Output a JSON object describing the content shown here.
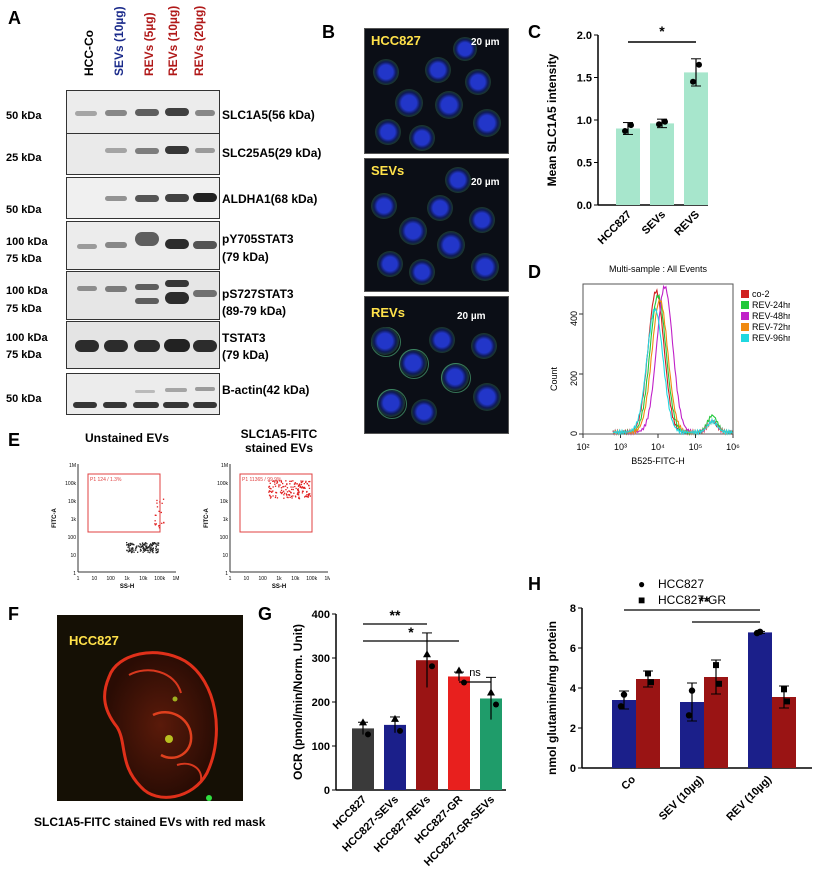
{
  "panels": {
    "A": "A",
    "B": "B",
    "C": "C",
    "D": "D",
    "E": "E",
    "F": "F",
    "G": "G",
    "H": "H"
  },
  "panelA": {
    "lanes": [
      {
        "label": "HCC-Co",
        "color": "#000000"
      },
      {
        "label": "SEVs (10µg)",
        "color": "#1a2a8a"
      },
      {
        "label": "REVs (5µg)",
        "color": "#b01818"
      },
      {
        "label": "REVs (10µg)",
        "color": "#b01818"
      },
      {
        "label": "REVs (20µg)",
        "color": "#b01818"
      }
    ],
    "blots": [
      {
        "protein": "SLC1A5(56 kDa)",
        "kda": [
          "50 kDa"
        ]
      },
      {
        "protein": "SLC25A5(29 kDa)",
        "kda": [
          "25 kDa"
        ]
      },
      {
        "protein": "ALDHA1(68 kDa)",
        "kda": [
          "50 kDa"
        ]
      },
      {
        "protein": "pY705STAT3",
        "protein2": "(79 kDa)",
        "kda": [
          "100 kDa",
          "75 kDa"
        ]
      },
      {
        "protein": "pS727STAT3",
        "protein2": "(89-79 kDa)",
        "kda": [
          "100 kDa",
          "75 kDa"
        ]
      },
      {
        "protein": "TSTAT3",
        "protein2": "(79 kDa)",
        "kda": [
          "100 kDa",
          "75 kDa"
        ]
      },
      {
        "protein": "B-actin(42 kDa)",
        "kda": [
          "50 kDa"
        ]
      }
    ]
  },
  "panelB": {
    "images": [
      "HCC827",
      "SEVs",
      "REVs"
    ],
    "scale": "20 µm"
  },
  "colors": {
    "teal": "#a7e6cc",
    "navy": "#1b1f8a",
    "darkred": "#9a1414",
    "red": "#e8201e",
    "green": "#1f9c6a",
    "dark": "#3a3a3a"
  },
  "chart_data": [
    {
      "id": "C",
      "type": "bar",
      "categories": [
        "HCC827",
        "SEVs",
        "REVS"
      ],
      "values": [
        0.9,
        0.96,
        1.56
      ],
      "errors": [
        0.07,
        0.05,
        0.16
      ],
      "points": [
        [
          0.87,
          0.94
        ],
        [
          0.95,
          0.98
        ],
        [
          1.45,
          1.65
        ]
      ],
      "ylabel": "Mean SLC1A5 intensity",
      "xlabel": "",
      "ylim": [
        0,
        2.0
      ],
      "yticks": [
        "0.0",
        "0.5",
        "1.0",
        "1.5",
        "2.0"
      ],
      "sig": "*"
    },
    {
      "id": "D",
      "type": "line",
      "title": "Multi-sample : All Events",
      "xlabel": "B525-FITC-H",
      "ylabel": "Count",
      "yticks": [
        "0",
        "200",
        "400"
      ],
      "xticks": [
        "10²",
        "10³",
        "10⁴",
        "10⁵",
        "10⁶"
      ],
      "series": [
        {
          "name": "co-2",
          "color": "#d02020",
          "peak": 3.95,
          "height": 470
        },
        {
          "name": "REV-24hr",
          "color": "#22c83a",
          "peak": 4.0,
          "height": 455
        },
        {
          "name": "REV-48hr",
          "color": "#c020c8",
          "peak": 4.18,
          "height": 485
        },
        {
          "name": "REV-72hr",
          "color": "#f08a10",
          "peak": 4.05,
          "height": 440
        },
        {
          "name": "REV-96hr",
          "color": "#20d8e0",
          "peak": 3.92,
          "height": 410
        }
      ]
    },
    {
      "id": "G",
      "type": "bar",
      "categories": [
        "HCC827",
        "HCC827-SEVs",
        "HCC827-REVs",
        "HCC827-GR",
        "HCC827-GR-SEVs"
      ],
      "values": [
        140,
        148,
        295,
        258,
        208
      ],
      "errors": [
        14,
        18,
        62,
        10,
        48
      ],
      "ylabel": "OCR (pmol/min/Norm. Unit)",
      "xlabel": "",
      "ylim": [
        0,
        400
      ],
      "yticks": [
        "0",
        "100",
        "200",
        "300",
        "400"
      ],
      "sig": [
        "**",
        "*",
        "ns"
      ]
    },
    {
      "id": "H",
      "type": "bar",
      "categories": [
        "Co",
        "SEV (10µg)",
        "REV (10µg)"
      ],
      "series": [
        {
          "name": "HCC827",
          "values": [
            3.4,
            3.3,
            6.78
          ],
          "errors": [
            0.45,
            0.95,
            0.05
          ],
          "marker": "●"
        },
        {
          "name": "HCC827-GR",
          "values": [
            4.45,
            4.55,
            3.55
          ],
          "errors": [
            0.4,
            0.85,
            0.55
          ],
          "marker": "■"
        }
      ],
      "ylabel": "nmol glutamine/mg protein",
      "xlabel": "",
      "ylim": [
        0,
        8
      ],
      "yticks": [
        "0",
        "2",
        "4",
        "6",
        "8"
      ],
      "sig": "**"
    }
  ],
  "panelE": {
    "plots": [
      {
        "title": "Unstained EVs",
        "gate": "P1  124 / 1.3%"
      },
      {
        "title": "SLC1A5-FITC",
        "title2": "stained EVs",
        "gate": "P1  11365 / 99.9%"
      }
    ],
    "yaxis": "FITC-A",
    "xaxis": "SS-H",
    "yticks": [
      "1M",
      "100k",
      "10k",
      "1k",
      "100",
      "10",
      "1"
    ],
    "xticks": [
      "1",
      "10",
      "100",
      "1k",
      "10k",
      "100k",
      "1M"
    ]
  },
  "panelF": {
    "label": "HCC827",
    "caption": "SLC1A5-FITC stained EVs with red mask"
  }
}
